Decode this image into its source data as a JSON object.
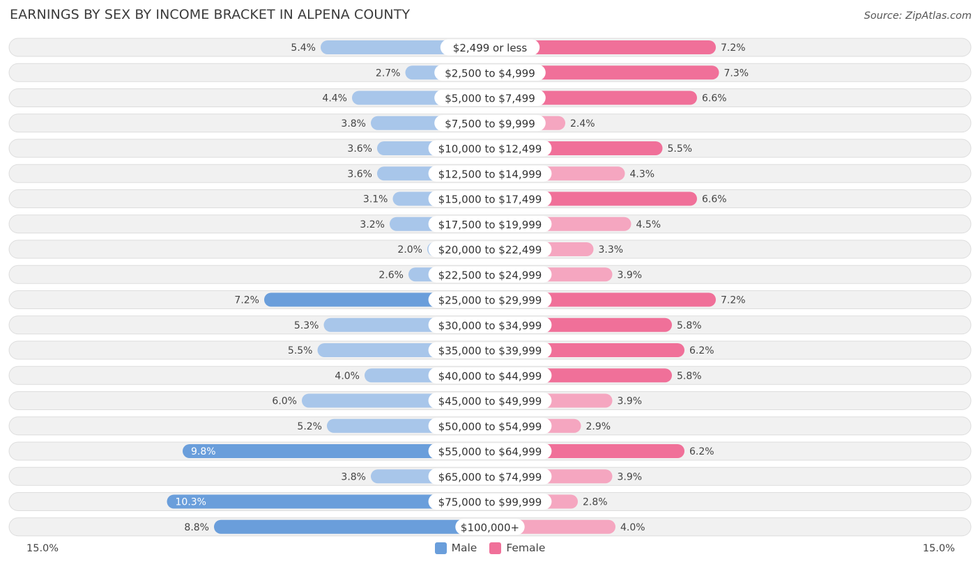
{
  "title": "EARNINGS BY SEX BY INCOME BRACKET IN ALPENA COUNTY",
  "source": "Source: ZipAtlas.com",
  "axis": {
    "left_label": "15.0%",
    "right_label": "15.0%"
  },
  "legend": {
    "male_label": "Male",
    "female_label": "Female"
  },
  "colors": {
    "male_strong": "#6a9edb",
    "male_light": "#a8c6ea",
    "female_strong": "#f07099",
    "female_light": "#f5a6c0",
    "track": "#f1f1f1",
    "track_border": "#dddddd"
  },
  "chart_data": {
    "type": "bar",
    "orientation": "horizontal-diverging",
    "title": "EARNINGS BY SEX BY INCOME BRACKET IN ALPENA COUNTY",
    "xlim": [
      -15,
      15
    ],
    "categories": [
      "$2,499 or less",
      "$2,500 to $4,999",
      "$5,000 to $7,499",
      "$7,500 to $9,999",
      "$10,000 to $12,499",
      "$12,500 to $14,999",
      "$15,000 to $17,499",
      "$17,500 to $19,999",
      "$20,000 to $22,499",
      "$22,500 to $24,999",
      "$25,000 to $29,999",
      "$30,000 to $34,999",
      "$35,000 to $39,999",
      "$40,000 to $44,999",
      "$45,000 to $49,999",
      "$50,000 to $54,999",
      "$55,000 to $64,999",
      "$65,000 to $74,999",
      "$75,000 to $99,999",
      "$100,000+"
    ],
    "series": [
      {
        "name": "Male",
        "values": [
          5.4,
          2.7,
          4.4,
          3.8,
          3.6,
          3.6,
          3.1,
          3.2,
          2.0,
          2.6,
          7.2,
          5.3,
          5.5,
          4.0,
          6.0,
          5.2,
          9.8,
          3.8,
          10.3,
          8.8
        ],
        "labels": [
          "5.4%",
          "2.7%",
          "4.4%",
          "3.8%",
          "3.6%",
          "3.6%",
          "3.1%",
          "3.2%",
          "2.0%",
          "2.6%",
          "7.2%",
          "5.3%",
          "5.5%",
          "4.0%",
          "6.0%",
          "5.2%",
          "9.8%",
          "3.8%",
          "10.3%",
          "8.8%"
        ]
      },
      {
        "name": "Female",
        "values": [
          7.2,
          7.3,
          6.6,
          2.4,
          5.5,
          4.3,
          6.6,
          4.5,
          3.3,
          3.9,
          7.2,
          5.8,
          6.2,
          5.8,
          3.9,
          2.9,
          6.2,
          3.9,
          2.8,
          4.0
        ],
        "labels": [
          "7.2%",
          "7.3%",
          "6.6%",
          "2.4%",
          "5.5%",
          "4.3%",
          "6.6%",
          "4.5%",
          "3.3%",
          "3.9%",
          "7.2%",
          "5.8%",
          "6.2%",
          "5.8%",
          "3.9%",
          "2.9%",
          "6.2%",
          "3.9%",
          "2.8%",
          "4.0%"
        ]
      }
    ]
  }
}
